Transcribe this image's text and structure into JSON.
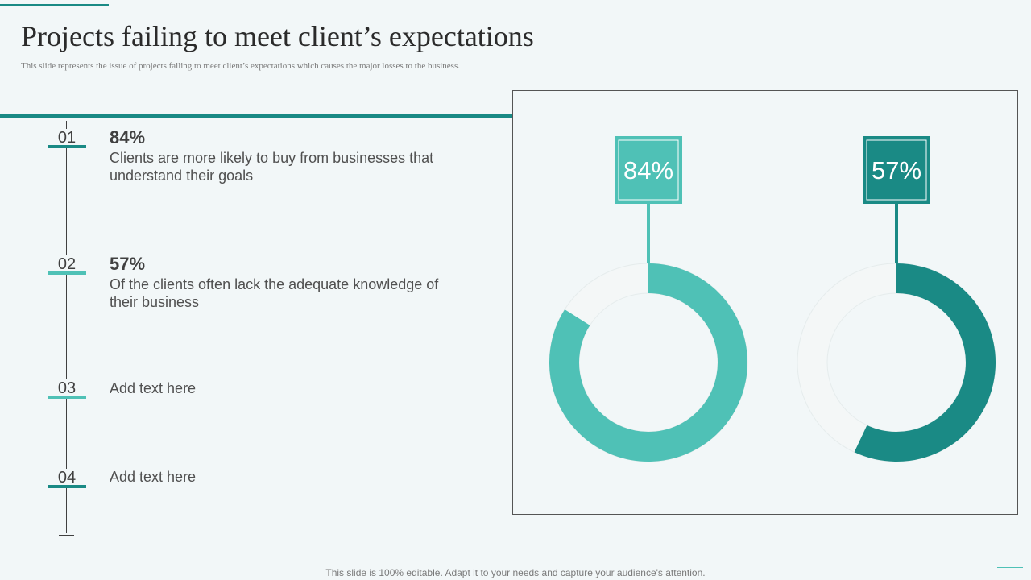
{
  "title": "Projects failing to meet client’s expectations",
  "subtitle": "This slide represents the issue of projects failing  to meet client’s  expectations which causes the major  losses to the business.",
  "items": [
    {
      "num": "01",
      "pct": "84%",
      "desc": "Clients are more likely to buy from businesses that understand their goals"
    },
    {
      "num": "02",
      "pct": "57%",
      "desc": "Of the clients often lack the adequate knowledge of their business"
    },
    {
      "num": "03",
      "text": "Add text here"
    },
    {
      "num": "04",
      "text": "Add text here"
    }
  ],
  "footer": "This slide is 100% editable. Adapt it to your needs and capture your audience's attention.",
  "colors": {
    "light_teal": "#4fc1b6",
    "dark_teal": "#1a8a85",
    "track": "#f4f7f7"
  },
  "chart_data": {
    "type": "donut",
    "series": [
      {
        "label": "84%",
        "value": 84,
        "color": "#4fc1b6"
      },
      {
        "label": "57%",
        "value": 57,
        "color": "#1a8a85"
      }
    ]
  }
}
